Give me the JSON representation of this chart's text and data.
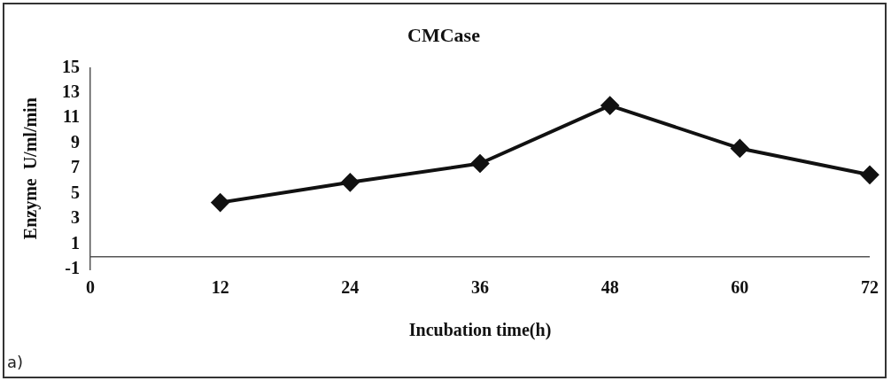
{
  "chart_data": {
    "type": "line",
    "title": "CMCase",
    "xlabel": "Incubation time(h)",
    "ylabel": "Enzyme  U/ml/min",
    "x": [
      12,
      24,
      36,
      48,
      60,
      72
    ],
    "series": [
      {
        "color": "#111111",
        "values": [
          4.3,
          5.9,
          7.4,
          12.0,
          8.6,
          6.5
        ]
      }
    ],
    "xlim": [
      0,
      72
    ],
    "xticks": [
      0,
      12,
      24,
      36,
      48,
      60,
      72
    ],
    "ylim": [
      -1,
      15
    ],
    "yticks": [
      -1,
      1,
      3,
      5,
      7,
      9,
      11,
      13,
      15
    ],
    "grid": false,
    "legend": false,
    "marker": "diamond",
    "line_style": "solid",
    "annotations": [
      "a)"
    ]
  }
}
